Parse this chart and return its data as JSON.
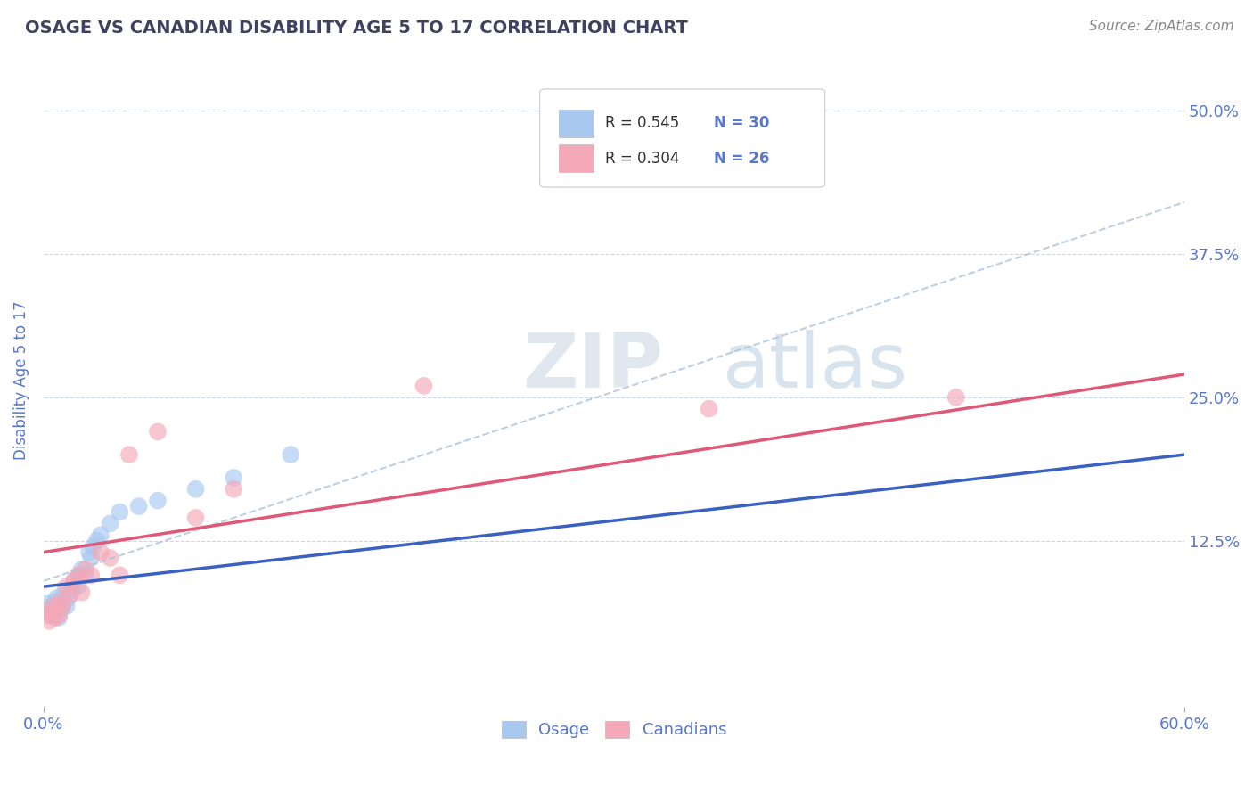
{
  "title": "OSAGE VS CANADIAN DISABILITY AGE 5 TO 17 CORRELATION CHART",
  "source_text": "Source: ZipAtlas.com",
  "ylabel": "Disability Age 5 to 17",
  "xlim": [
    0.0,
    0.6
  ],
  "ylim": [
    -0.02,
    0.55
  ],
  "ytick_labels": [
    "12.5%",
    "25.0%",
    "37.5%",
    "50.0%"
  ],
  "ytick_positions": [
    0.125,
    0.25,
    0.375,
    0.5
  ],
  "legend1_r": "0.545",
  "legend1_n": "30",
  "legend2_r": "0.304",
  "legend2_n": "26",
  "bottom_legend": [
    "Osage",
    "Canadians"
  ],
  "osage_color": "#A8C8F0",
  "canadian_color": "#F5A8B8",
  "osage_line_color": "#3A60C0",
  "canadian_line_color": "#E05878",
  "dashed_line_color": "#B0C4D8",
  "title_color": "#404060",
  "axis_color": "#5878C8",
  "source_color": "#888888",
  "background_color": "#FFFFFF",
  "grid_color": "#C8D8E8",
  "legend_edge_color": "#CCCCCC",
  "osage_x": [
    0.002,
    0.003,
    0.004,
    0.005,
    0.006,
    0.007,
    0.008,
    0.009,
    0.01,
    0.011,
    0.012,
    0.013,
    0.015,
    0.016,
    0.018,
    0.019,
    0.02,
    0.022,
    0.024,
    0.025,
    0.026,
    0.028,
    0.03,
    0.035,
    0.04,
    0.05,
    0.06,
    0.08,
    0.1,
    0.13
  ],
  "osage_y": [
    0.07,
    0.065,
    0.068,
    0.06,
    0.072,
    0.075,
    0.058,
    0.065,
    0.07,
    0.08,
    0.068,
    0.075,
    0.082,
    0.09,
    0.085,
    0.095,
    0.1,
    0.095,
    0.115,
    0.11,
    0.12,
    0.125,
    0.13,
    0.14,
    0.15,
    0.155,
    0.16,
    0.17,
    0.18,
    0.2
  ],
  "canadian_x": [
    0.002,
    0.003,
    0.004,
    0.005,
    0.006,
    0.007,
    0.008,
    0.009,
    0.01,
    0.012,
    0.014,
    0.016,
    0.018,
    0.02,
    0.022,
    0.025,
    0.03,
    0.035,
    0.04,
    0.045,
    0.06,
    0.08,
    0.1,
    0.2,
    0.35,
    0.48
  ],
  "canadian_y": [
    0.06,
    0.055,
    0.062,
    0.068,
    0.058,
    0.065,
    0.06,
    0.072,
    0.068,
    0.085,
    0.078,
    0.09,
    0.095,
    0.08,
    0.1,
    0.095,
    0.115,
    0.11,
    0.095,
    0.2,
    0.22,
    0.145,
    0.17,
    0.26,
    0.24,
    0.25
  ],
  "osage_reg": [
    0.085,
    0.2
  ],
  "canadian_reg": [
    0.115,
    0.27
  ],
  "dashed_reg": [
    0.09,
    0.42
  ],
  "watermark": "ZIPatlas"
}
